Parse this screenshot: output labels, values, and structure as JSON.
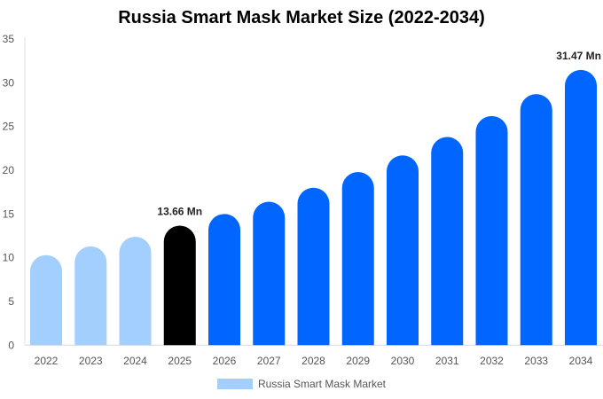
{
  "chart_data": {
    "type": "bar",
    "title": "Russia Smart Mask Market Size (2022-2034)",
    "xlabel": "",
    "ylabel": "",
    "ylim": [
      0,
      35
    ],
    "yticks": [
      0,
      5,
      10,
      15,
      20,
      25,
      30,
      35
    ],
    "categories": [
      "2022",
      "2023",
      "2024",
      "2025",
      "2026",
      "2027",
      "2028",
      "2029",
      "2030",
      "2031",
      "2032",
      "2033",
      "2034"
    ],
    "series": [
      {
        "name": "Russia Smart Mask Market",
        "values": [
          10.3,
          11.3,
          12.4,
          13.66,
          15.0,
          16.4,
          18.0,
          19.8,
          21.7,
          23.8,
          26.2,
          28.7,
          31.47
        ]
      }
    ],
    "bar_colors": [
      "#a3cfff",
      "#a3cfff",
      "#a3cfff",
      "#000000",
      "#0066ff",
      "#0066ff",
      "#0066ff",
      "#0066ff",
      "#0066ff",
      "#0066ff",
      "#0066ff",
      "#0066ff",
      "#0066ff"
    ],
    "annotations": [
      {
        "index": 3,
        "text": "13.66 Mn"
      },
      {
        "index": 12,
        "text": "31.47 Mn"
      }
    ],
    "legend": {
      "label": "Russia Smart Mask Market",
      "color": "#a3cfff",
      "position": "bottom"
    },
    "grid": false
  }
}
